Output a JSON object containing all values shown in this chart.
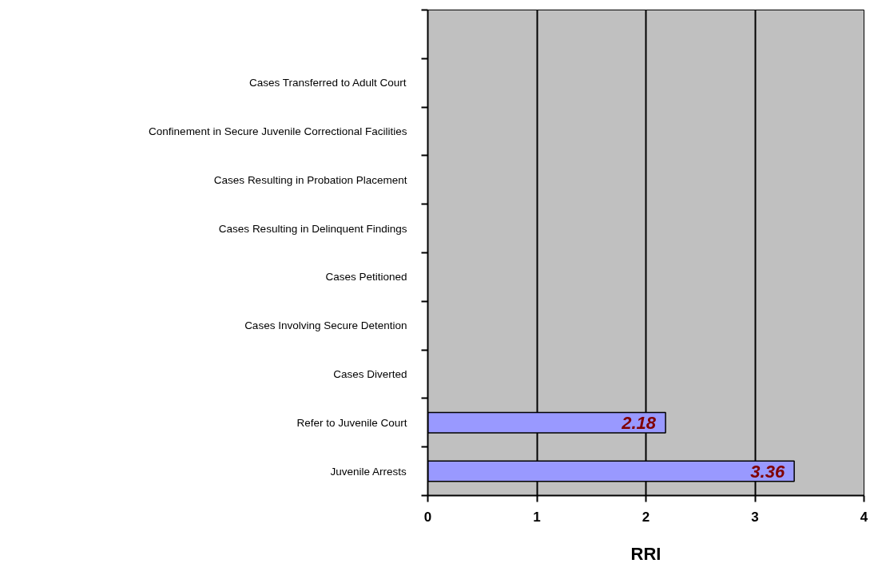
{
  "chart_data": {
    "type": "bar",
    "orientation": "horizontal",
    "xlabel": "RRI",
    "categories": [
      null,
      "Cases Transferred to Adult Court",
      "Confinement in Secure Juvenile Correctional Facilities",
      "Cases Resulting in Probation Placement",
      "Cases Resulting in Delinquent Findings",
      "Cases Petitioned",
      "Cases Involving Secure Detention",
      "Cases Diverted",
      "Refer to Juvenile Court",
      "Juvenile Arrests"
    ],
    "values": [
      null,
      null,
      null,
      null,
      null,
      null,
      null,
      null,
      2.18,
      3.36
    ],
    "color": "#9999ff",
    "data_labels": true,
    "xlim": [
      0,
      4
    ],
    "xticks": [
      0,
      1,
      2,
      3,
      4
    ],
    "grid": "x"
  }
}
